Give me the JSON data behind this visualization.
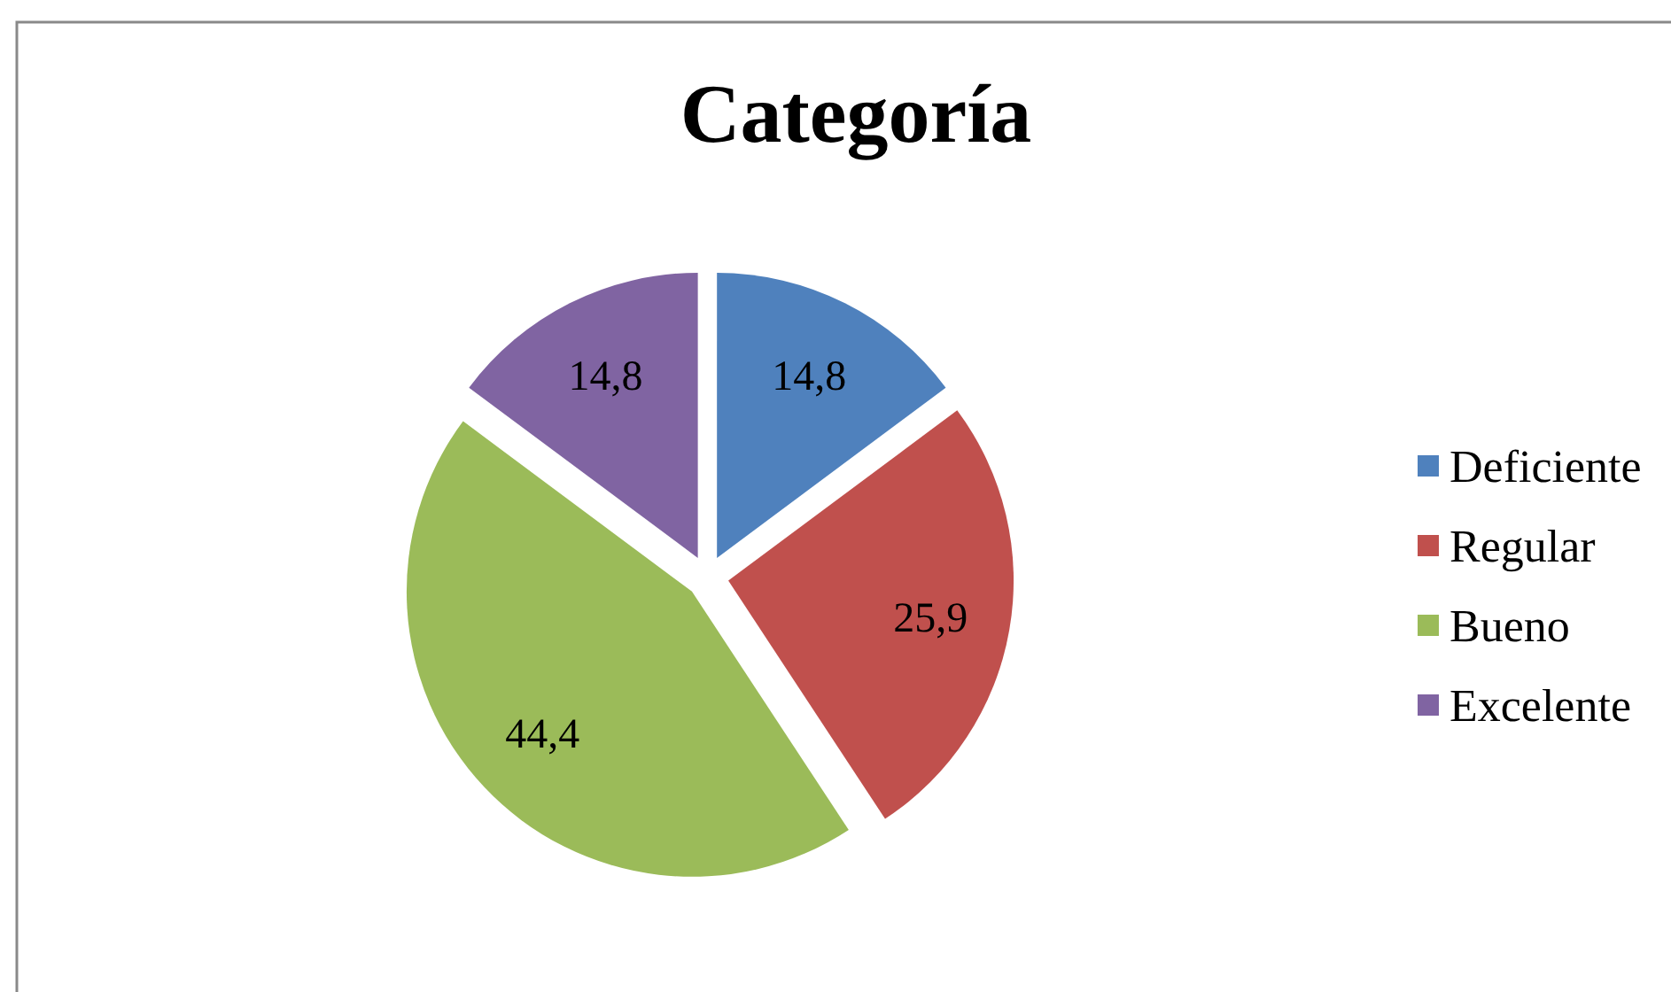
{
  "chart_data": {
    "type": "pie",
    "title": "Categoría",
    "categories": [
      "Deficiente",
      "Regular",
      "Bueno",
      "Excelente"
    ],
    "values": [
      14.8,
      25.9,
      44.4,
      14.8
    ],
    "colors": [
      "#4f81bd",
      "#c0504d",
      "#9bbb59",
      "#8064a2"
    ],
    "value_labels": [
      "14,8",
      "25,9",
      "44,4",
      "14,8"
    ],
    "legend": "right"
  }
}
